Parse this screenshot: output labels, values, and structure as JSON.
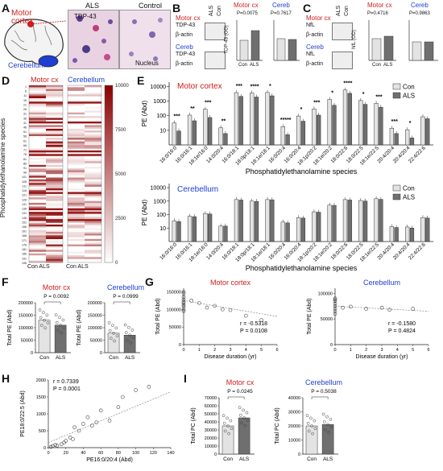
{
  "panels": {
    "A": "A",
    "B": "B",
    "C": "C",
    "D": "D",
    "E": "E",
    "F": "F",
    "G": "G",
    "H": "H",
    "I": "I"
  },
  "colors": {
    "con": "#e3e3e3",
    "als": "#6f6f6f",
    "motor": "#d01c1c",
    "cereb": "#1f3fd0",
    "heat": "#8b0000"
  },
  "panelA": {
    "brain_motor": "Motor cortex",
    "brain_cereb": "Cerebellum",
    "micro_als": "ALS",
    "micro_control": "Control",
    "tdp_label": "TDP-43",
    "nucleus_label": "Nucleus"
  },
  "panelB": {
    "blot_motor": "Motor cx",
    "blot_cereb": "Cereb",
    "lane_als": "ALS",
    "lane_con": "Con",
    "band1": "TDP-43",
    "band2": "β-actin",
    "band3": "TDP-43",
    "band4": "β-actin",
    "ylabel": "TDP-43 (OD)",
    "motor_title": "Motor cx",
    "motor_p": "P=0.0075",
    "cereb_title": "Cereb",
    "cereb_p": "P=0.7617",
    "cat_con": "Con",
    "cat_als": "ALS"
  },
  "panelC": {
    "blot_motor": "Motor cx",
    "blot_cereb": "Cereb",
    "lane_als": "ALS",
    "lane_con": "Con",
    "band1": "NfL",
    "band2": "β-actin",
    "band3": "NfL",
    "band4": "β-actin",
    "ylabel": "NfL (OD)",
    "motor_title": "Motor cx",
    "motor_p": "P=0.4716",
    "cereb_title": "Cereb",
    "cereb_p": "P=0.9863",
    "cat_con": "Con",
    "cat_als": "ALS"
  },
  "panelD": {
    "title_motor": "Motor cx",
    "title_cereb": "Cerebellum",
    "ylabel": "Phosphatidylethanolamine species",
    "xlabel_motor": "Con ALS",
    "xlabel_cereb": "Con ALS",
    "colorbar_ticks": [
      "10000",
      "7500",
      "5000",
      "2500",
      "0"
    ],
    "row_labels": [
      "1",
      "6",
      "11",
      "16",
      "21",
      "26",
      "31",
      "36",
      "41",
      "46",
      "51",
      "56",
      "61",
      "66",
      "71",
      "76",
      "81",
      "86",
      "91",
      "96",
      "101",
      "106",
      "111",
      "116",
      "121",
      "126",
      "131",
      "136",
      "141",
      "146",
      "151",
      "156",
      "161",
      "166",
      "171",
      "176",
      "181",
      "186",
      "191",
      "196"
    ]
  },
  "chart_data": [
    {
      "type": "bar",
      "title": "Motor cortex",
      "ylabel": "PE (Abd)",
      "xlabel": "Phosphatidylethanolamine species",
      "log_scale": true,
      "yticks": [
        "10",
        "100",
        "1000",
        "10000"
      ],
      "categories": [
        "16:0/16:0",
        "16:0/16:1",
        "18:1e/16:0",
        "14:0/20:4",
        "16:0/18:1",
        "18:0p/18:1",
        "18:1e/18:1",
        "16:0/20:4",
        "16:0/20:4",
        "18:1p/20:2",
        "18:1e/20:2",
        "18:0/22:6",
        "18:0/22:5",
        "18:1e/22:5",
        "20:4/20:4",
        "20:4/20:4",
        "22:4/22:6"
      ],
      "significance": [
        "***",
        "**",
        "***",
        "**",
        "***",
        "****",
        "*",
        "*****",
        "*",
        "***",
        "*",
        "****",
        "*",
        "***",
        "***",
        "*",
        ""
      ],
      "series": [
        {
          "name": "Con",
          "values": [
            32,
            110,
            280,
            15,
            3800,
            3600,
            3900,
            18,
            95,
            290,
            1300,
            5800,
            1100,
            700,
            14,
            11,
            85
          ]
        },
        {
          "name": "ALS",
          "values": [
            9,
            45,
            75,
            6,
            2100,
            1900,
            2300,
            5,
            42,
            110,
            520,
            3400,
            600,
            380,
            6,
            3,
            62
          ]
        }
      ]
    },
    {
      "type": "bar",
      "title": "Cerebellum",
      "ylabel": "PE (Abd)",
      "xlabel": "Phosphatidylethanolamine species",
      "log_scale": true,
      "yticks": [
        "10",
        "100",
        "1000",
        "10000"
      ],
      "categories": [
        "16:0/16:0",
        "16:0/16:1",
        "18:1e/16:0",
        "14:0/20:4",
        "16:0/18:1",
        "18:0p/18:1",
        "18:1e/18:1",
        "16:0/20:4",
        "16:0/20:4",
        "18:1p/20:2",
        "18:1e/20:2",
        "18:0/22:6",
        "18:0/22:5",
        "18:1e/22:5",
        "20:4/20:4",
        "20:4/20:4",
        "22:4/22:6"
      ],
      "series": [
        {
          "name": "Con",
          "values": [
            35,
            75,
            120,
            14,
            1300,
            1000,
            1300,
            28,
            60,
            160,
            500,
            1300,
            1100,
            1500,
            13,
            12,
            60
          ]
        },
        {
          "name": "ALS",
          "values": [
            30,
            70,
            110,
            14,
            1200,
            950,
            1250,
            24,
            55,
            150,
            480,
            1200,
            1000,
            1350,
            11,
            10,
            55
          ]
        }
      ]
    },
    {
      "type": "bar",
      "title": "Motor cx",
      "ylabel": "Total PE (Abd)",
      "p_label": "P = 0.0092",
      "categories": [
        "Con",
        "ALS"
      ],
      "yticks": [
        "0",
        "50000",
        "100000",
        "150000",
        "200000"
      ],
      "ylim": [
        0,
        200000
      ],
      "values": [
        130000,
        110000
      ]
    },
    {
      "type": "bar",
      "title": "Cerebellum",
      "ylabel": "Total PE (Abd)",
      "p_label": "P = 0.0999",
      "categories": [
        "Con",
        "ALS"
      ],
      "yticks": [
        "0",
        "50000",
        "100000",
        "150000",
        "200000"
      ],
      "ylim": [
        0,
        200000
      ],
      "values": [
        78000,
        70000
      ]
    },
    {
      "type": "scatter",
      "title": "Motor cortex",
      "xlabel": "Disease duration (yr)",
      "ylabel": "Total PE (Abd)",
      "xticks": [
        "0",
        "1",
        "2",
        "3",
        "4",
        "5",
        "6"
      ],
      "yticks": [
        "0",
        "50000",
        "100000",
        "150000"
      ],
      "xlim": [
        0,
        6
      ],
      "ylim": [
        0,
        160000
      ],
      "r_label": "r = -0.5318",
      "p_label": "P = 0.0108",
      "points": [
        [
          0,
          145000
        ],
        [
          0,
          135000
        ],
        [
          0,
          128000
        ],
        [
          0,
          122000
        ],
        [
          0,
          118000
        ],
        [
          0,
          112000
        ],
        [
          0,
          108000
        ],
        [
          0,
          150000
        ],
        [
          0,
          100000
        ],
        [
          0,
          95000
        ],
        [
          0.5,
          125000
        ],
        [
          1,
          118000
        ],
        [
          1.5,
          105000
        ],
        [
          2,
          110000
        ],
        [
          2.5,
          100000
        ],
        [
          3,
          98000
        ],
        [
          4,
          82000
        ],
        [
          5,
          70000
        ]
      ],
      "trend": [
        [
          0,
          125000
        ],
        [
          6,
          80000
        ]
      ]
    },
    {
      "type": "scatter",
      "title": "Cerebellum",
      "xlabel": "Disease duration (yr)",
      "ylabel": "Total PE (Abd)",
      "xticks": [
        "0",
        "1",
        "2",
        "3",
        "4",
        "5",
        "6"
      ],
      "yticks": [
        "0",
        "50000",
        "100000"
      ],
      "xlim": [
        0,
        6
      ],
      "ylim": [
        0,
        110000
      ],
      "r_label": "r = -0.1580",
      "p_label": "P = 0.4824",
      "points": [
        [
          0,
          90000
        ],
        [
          0,
          85000
        ],
        [
          0,
          80000
        ],
        [
          0,
          75000
        ],
        [
          0,
          70000
        ],
        [
          0,
          65000
        ],
        [
          0,
          60000
        ],
        [
          0,
          88000
        ],
        [
          0.5,
          72000
        ],
        [
          1,
          74000
        ],
        [
          2,
          70000
        ],
        [
          3,
          72000
        ],
        [
          3.5,
          68000
        ],
        [
          5,
          70000
        ]
      ],
      "trend": [
        [
          0,
          75000
        ],
        [
          6,
          65000
        ]
      ]
    },
    {
      "type": "scatter",
      "title": "",
      "xlabel": "PE16:0/20:4 (Abd)",
      "ylabel": "PE18:0/22:5 (Abd)",
      "xticks": [
        "0",
        "20",
        "40",
        "60",
        "80",
        "100",
        "120",
        "140"
      ],
      "yticks": [
        "0",
        "500",
        "1000",
        "1500",
        "2000"
      ],
      "xlim": [
        0,
        140
      ],
      "ylim": [
        0,
        2000
      ],
      "r_label": "r = 0.7339",
      "p_label": "P = 0.0001",
      "points": [
        [
          3,
          20
        ],
        [
          5,
          50
        ],
        [
          8,
          80
        ],
        [
          10,
          60
        ],
        [
          15,
          100
        ],
        [
          18,
          150
        ],
        [
          20,
          200
        ],
        [
          25,
          300
        ],
        [
          28,
          250
        ],
        [
          30,
          600
        ],
        [
          35,
          500
        ],
        [
          40,
          700
        ],
        [
          45,
          900
        ],
        [
          50,
          650
        ],
        [
          55,
          750
        ],
        [
          60,
          1100
        ],
        [
          70,
          800
        ],
        [
          80,
          1200
        ],
        [
          85,
          1500
        ],
        [
          100,
          1700
        ],
        [
          115,
          1800
        ]
      ],
      "trend": [
        [
          0,
          150
        ],
        [
          140,
          1650
        ]
      ]
    },
    {
      "type": "bar",
      "title": "Motor cx",
      "ylabel": "Total PC (Abd)",
      "p_label": "P = 0.0245",
      "categories": [
        "Con",
        "ALS"
      ],
      "yticks": [
        "0",
        "10000",
        "20000",
        "30000",
        "40000",
        "50000",
        "60000",
        "70000"
      ],
      "ylim": [
        0,
        70000
      ],
      "values": [
        35000,
        45000
      ]
    },
    {
      "type": "bar",
      "title": "Cerebellum",
      "ylabel": "Total PC (Abd)",
      "p_label": "P = 0.5038",
      "categories": [
        "Con",
        "ALS"
      ],
      "yticks": [
        "0",
        "10000",
        "20000",
        "30000",
        "40000"
      ],
      "ylim": [
        0,
        40000
      ],
      "values": [
        20000,
        21000
      ]
    }
  ],
  "legend": {
    "con": "Con",
    "als": "ALS"
  }
}
